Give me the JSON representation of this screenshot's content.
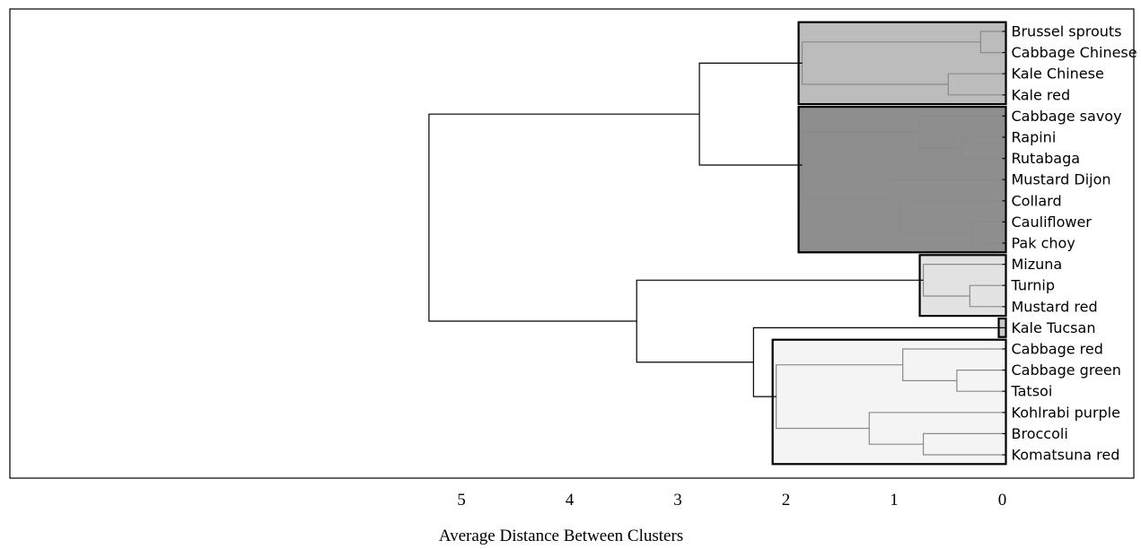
{
  "chart_data": {
    "type": "dendrogram",
    "xlabel": "Average Distance Between Clusters",
    "x_ticks": [
      5,
      4,
      3,
      2,
      1,
      0
    ],
    "xlim": [
      5.5,
      -0.05
    ],
    "leaves": [
      "Brussel sprouts",
      "Cabbage Chinese",
      "Kale Chinese",
      "Kale red",
      "Cabbage savoy",
      "Rapini",
      "Rutabaga",
      "Mustard Dijon",
      "Collard",
      "Cauliflower",
      "Pak choy",
      "Mizuna",
      "Turnip",
      "Mustard red",
      "Kale Tucsan",
      "Cabbage red",
      "Cabbage green",
      "Tatsoi",
      "Kohlrabi purple",
      "Broccoli",
      "Komatsuna red"
    ],
    "merges": [
      {
        "id": "m1",
        "children": [
          "Brussel sprouts",
          "Cabbage Chinese"
        ],
        "height": 0.2
      },
      {
        "id": "m2",
        "children": [
          "Kale Chinese",
          "Kale red"
        ],
        "height": 0.5
      },
      {
        "id": "m3",
        "children": [
          "m1",
          "m2"
        ],
        "height": 1.85
      },
      {
        "id": "m4",
        "children": [
          "Rapini",
          "Rutabaga"
        ],
        "height": 0.37
      },
      {
        "id": "m5",
        "children": [
          "Cabbage savoy",
          "m4"
        ],
        "height": 0.78
      },
      {
        "id": "m6",
        "children": [
          "Cauliflower",
          "Pak choy"
        ],
        "height": 0.28
      },
      {
        "id": "m7",
        "children": [
          "Collard",
          "m6"
        ],
        "height": 0.94
      },
      {
        "id": "m8",
        "children": [
          "Mustard Dijon",
          "m7"
        ],
        "height": 1.05
      },
      {
        "id": "m9",
        "children": [
          "m5",
          "m8"
        ],
        "height": 1.85
      },
      {
        "id": "m10",
        "children": [
          "m3",
          "m9"
        ],
        "height": 2.8
      },
      {
        "id": "m11",
        "children": [
          "Turnip",
          "Mustard red"
        ],
        "height": 0.3
      },
      {
        "id": "m12",
        "children": [
          "Mizuna",
          "m11"
        ],
        "height": 0.73
      },
      {
        "id": "m13",
        "children": [
          "Cabbage green",
          "Tatsoi"
        ],
        "height": 0.42
      },
      {
        "id": "m14",
        "children": [
          "Cabbage red",
          "m13"
        ],
        "height": 0.92
      },
      {
        "id": "m15",
        "children": [
          "Broccoli",
          "Komatsuna red"
        ],
        "height": 0.73
      },
      {
        "id": "m16",
        "children": [
          "Kohlrabi purple",
          "m15"
        ],
        "height": 1.23
      },
      {
        "id": "m17",
        "children": [
          "m14",
          "m16"
        ],
        "height": 2.09
      },
      {
        "id": "m18",
        "children": [
          "Kale Tucsan",
          "m17"
        ],
        "height": 2.3
      },
      {
        "id": "m19",
        "children": [
          "m12",
          "m18"
        ],
        "height": 3.38
      },
      {
        "id": "m20",
        "children": [
          "m10",
          "m19"
        ],
        "height": 5.3
      }
    ],
    "clusters": [
      {
        "members": [
          "Brussel sprouts",
          "Cabbage Chinese",
          "Kale Chinese",
          "Kale red"
        ],
        "root": "m3",
        "fill": "#bcbcbc"
      },
      {
        "members": [
          "Cabbage savoy",
          "Rapini",
          "Rutabaga",
          "Mustard Dijon",
          "Collard",
          "Cauliflower",
          "Pak choy"
        ],
        "root": "m9",
        "fill": "#8e8e8e"
      },
      {
        "members": [
          "Mizuna",
          "Turnip",
          "Mustard red"
        ],
        "root": "m12",
        "fill": "#e2e2e2"
      },
      {
        "members": [
          "Kale Tucsan"
        ],
        "root": "Kale Tucsan",
        "fill": "#c8c8c8"
      },
      {
        "members": [
          "Cabbage red",
          "Cabbage green",
          "Tatsoi",
          "Kohlrabi purple",
          "Broccoli",
          "Komatsuna red"
        ],
        "root": "m17",
        "fill": "#f4f4f4"
      }
    ]
  }
}
